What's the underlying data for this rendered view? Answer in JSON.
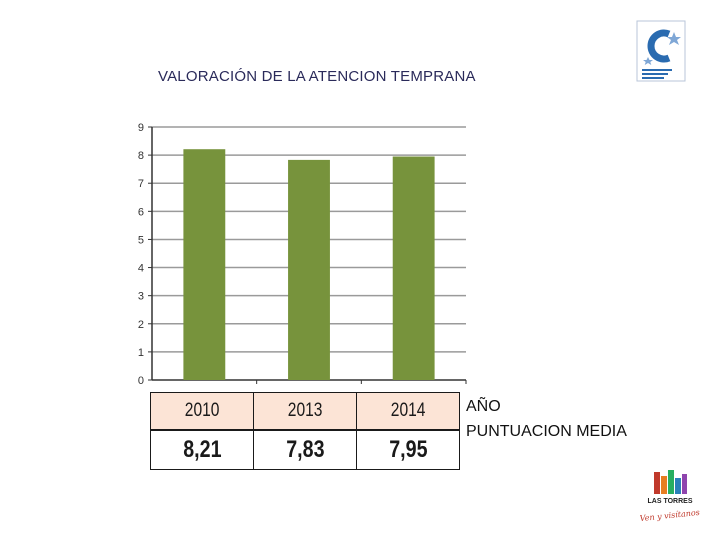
{
  "title": "VALORACIÓN DE LA ATENCION TEMPRANA",
  "colors": {
    "bar": "#77933c",
    "grid": "#9a9a9a",
    "axis": "#333333",
    "header_fill": "#fce4d6"
  },
  "chart_data": {
    "type": "bar",
    "categories": [
      "2010",
      "2013",
      "2014"
    ],
    "values": [
      8.21,
      7.83,
      7.95
    ],
    "ylim": [
      0,
      9
    ],
    "yticks": [
      "0",
      "1",
      "2",
      "3",
      "4",
      "5",
      "6",
      "7",
      "8",
      "9"
    ],
    "grid": true,
    "legend": "none"
  },
  "table": {
    "row_labels": [
      "AÑO",
      "PUNTUACION MEDIA"
    ],
    "years": [
      "2010",
      "2013",
      "2014"
    ],
    "scores": [
      "8,21",
      "7,83",
      "7,95"
    ]
  },
  "logos": {
    "top": "cocemfe-logo",
    "bottom": "las-torres-logo",
    "bottom_text": "LAS TORRES",
    "bottom_slogan": "Ven y visítanos"
  }
}
